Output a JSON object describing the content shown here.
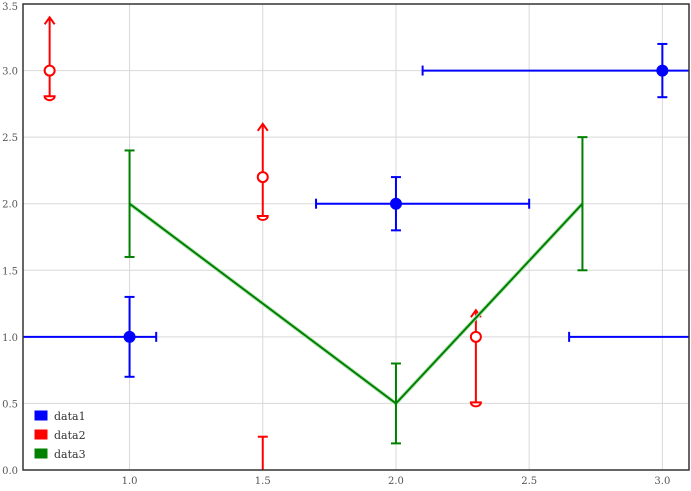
{
  "chart_data": {
    "type": "scatter",
    "xlim": [
      0.6,
      3.1
    ],
    "ylim": [
      0.0,
      3.5
    ],
    "xticks": [
      "1.0",
      "1.5",
      "2.0",
      "2.5",
      "3.0"
    ],
    "yticks": [
      "0.0",
      "0.5",
      "1.0",
      "1.5",
      "2.0",
      "2.5",
      "3.0",
      "3.5"
    ],
    "grid": true,
    "legend": "bottom-left",
    "series": [
      {
        "name": "data1",
        "color": "#0000ff",
        "marker": "filled-circle",
        "line": false,
        "points": [
          {
            "x": 1.0,
            "y": 1.0,
            "x_lo": 0.5,
            "x_hi": 1.1,
            "y_lo": 0.7,
            "y_hi": 1.3
          },
          {
            "x": 2.0,
            "y": 2.0,
            "x_lo": 1.7,
            "x_hi": 2.5,
            "y_lo": 1.8,
            "y_hi": 2.2
          },
          {
            "x": 3.0,
            "y": 3.0,
            "x_lo": 2.1,
            "x_hi": 3.2,
            "y_lo": 2.8,
            "y_hi": 3.2
          }
        ]
      },
      {
        "name": "data2",
        "color": "#ff0000",
        "marker": "open-circle",
        "line": false,
        "points": [
          {
            "x": 0.7,
            "y": 3.0,
            "y_lo": 2.8,
            "y_hi": 3.4,
            "upper_limit": true,
            "lower_limit": true
          },
          {
            "x": 1.5,
            "y": 2.2,
            "y_lo": 1.9,
            "y_hi": 2.6,
            "upper_limit": true,
            "lower_limit": true
          },
          {
            "x": 2.3,
            "y": 1.0,
            "y_lo": 0.5,
            "y_hi": 1.2,
            "upper_limit": true,
            "lower_limit": true
          }
        ]
      },
      {
        "name": "data3",
        "color": "#008000",
        "marker": "none",
        "line": true,
        "points": [
          {
            "x": 1.0,
            "y": 2.0,
            "y_lo": 1.6,
            "y_hi": 2.4
          },
          {
            "x": 2.0,
            "y": 0.5,
            "y_lo": 0.2,
            "y_hi": 0.8
          },
          {
            "x": 2.7,
            "y": 2.0,
            "y_lo": 1.5,
            "y_hi": 2.5
          }
        ]
      }
    ],
    "extra_errorbars": [
      {
        "series": "data1",
        "x": 2.65,
        "y": 1.0,
        "x_hi": 3.2
      },
      {
        "series": "data2",
        "x": 1.5,
        "y_lo": -0.2,
        "y_hi": 0.25
      }
    ]
  }
}
